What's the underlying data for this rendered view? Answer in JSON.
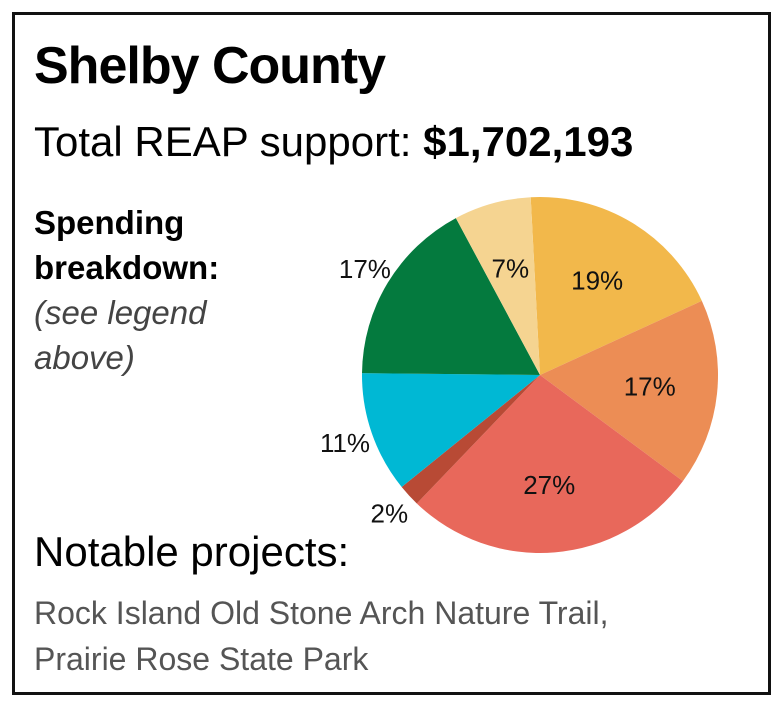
{
  "header": {
    "title": "Shelby County",
    "total_label": "Total REAP support:",
    "total_amount": "$1,702,193"
  },
  "breakdown": {
    "line1": "Spending",
    "line2": "breakdown:",
    "note": "(see legend above)"
  },
  "notable": {
    "heading": "Notable projects:",
    "line1": "Rock Island Old Stone Arch Nature Trail,",
    "line2": "Prairie Rose State Park"
  },
  "chart_data": {
    "type": "pie",
    "title": "",
    "slices": [
      {
        "label": "19%",
        "value": 19,
        "color": "#F2B84B"
      },
      {
        "label": "17%",
        "value": 17,
        "color": "#EC8D55"
      },
      {
        "label": "27%",
        "value": 27,
        "color": "#E8685B"
      },
      {
        "label": "2%",
        "value": 2,
        "color": "#B84A35"
      },
      {
        "label": "11%",
        "value": 11,
        "color": "#00B8D4"
      },
      {
        "label": "17%",
        "value": 17,
        "color": "#047A3E"
      },
      {
        "label": "7%",
        "value": 7,
        "color": "#F5D491"
      }
    ]
  }
}
